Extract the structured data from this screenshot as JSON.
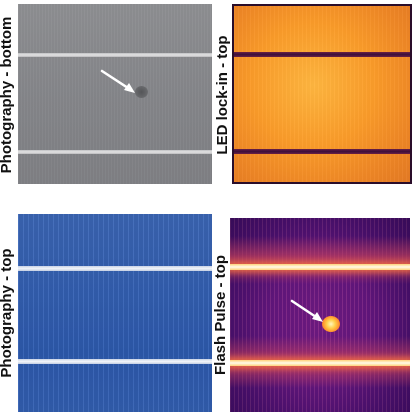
{
  "panels": [
    {
      "label": "Photography - bottom",
      "color": "#85868a"
    },
    {
      "label": "LED lock-in - top",
      "color": "#fb9c2a"
    },
    {
      "label": "Photography - top",
      "color": "#3461b4"
    },
    {
      "label": "Flash Pulse - top",
      "color": "#6a1a86"
    }
  ],
  "icons": [
    "arrow-icon"
  ]
}
